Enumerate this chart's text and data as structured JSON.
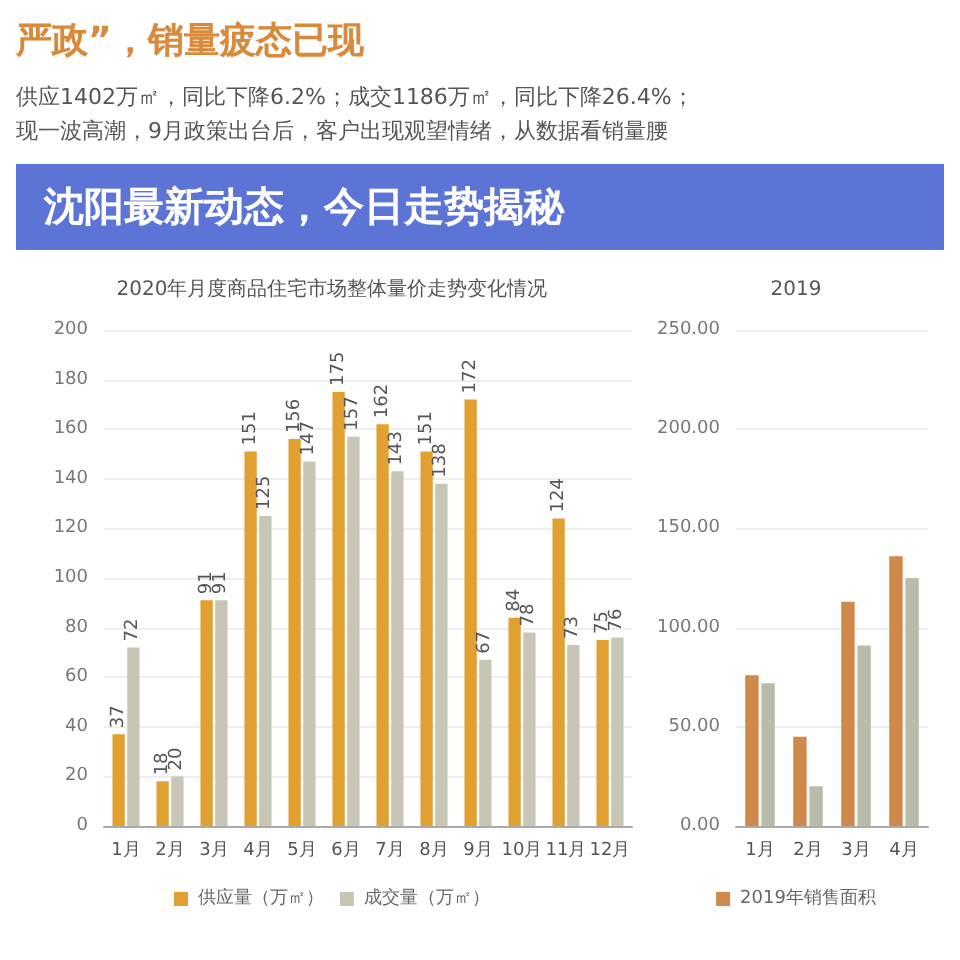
{
  "chart_data": [
    {
      "type": "bar",
      "title": "2020年月度商品住宅市场整体量价走势变化情况",
      "annotations": [
        "严政”，销量疲态已现",
        "供应1402万㎡，同比下降6.2%；成交1186万㎡，同比下降26.4%；",
        "现一波高潮，9月政策出台后，客户出现观望情绪，从数据看销量腰",
        "沈阳最新动态，今日走势揭秘"
      ],
      "categories": [
        "1月",
        "2月",
        "3月",
        "4月",
        "5月",
        "6月",
        "7月",
        "8月",
        "9月",
        "10月",
        "11月",
        "12月"
      ],
      "series": [
        {
          "name": "供应量（万㎡）",
          "color": "#e0a032",
          "values": [
            37,
            18,
            91,
            151,
            156,
            175,
            162,
            151,
            172,
            84,
            124,
            75
          ]
        },
        {
          "name": "成交量（万㎡）",
          "color": "#c9c5b5",
          "values": [
            72,
            20,
            91,
            125,
            147,
            157,
            143,
            138,
            67,
            78,
            73,
            76
          ]
        }
      ],
      "ylim": [
        0,
        200
      ],
      "yticks": [
        0,
        20,
        40,
        60,
        80,
        100,
        120,
        140,
        160,
        180,
        200
      ],
      "grid": "y",
      "legend": "bottom",
      "data_labels": true
    },
    {
      "type": "bar",
      "title": "2019",
      "categories": [
        "1月",
        "2月",
        "3月",
        "4月"
      ],
      "series": [
        {
          "name": "2019年销售面积",
          "color": "#d0894a",
          "values": [
            76,
            45,
            113,
            136
          ]
        },
        {
          "color": "#b9bca9",
          "values": [
            72,
            20,
            91,
            125
          ]
        }
      ],
      "ylim": [
        0,
        250
      ],
      "yticks": [
        {
          "value": 0,
          "label": "0.00"
        },
        {
          "value": 50,
          "label": "50.00"
        },
        {
          "value": 100,
          "label": "100.00"
        },
        {
          "value": 150,
          "label": "150.00"
        },
        {
          "value": 200,
          "label": "200.00"
        },
        {
          "value": 250,
          "label": "250.00"
        }
      ],
      "grid": "y",
      "legend": "bottom"
    }
  ]
}
